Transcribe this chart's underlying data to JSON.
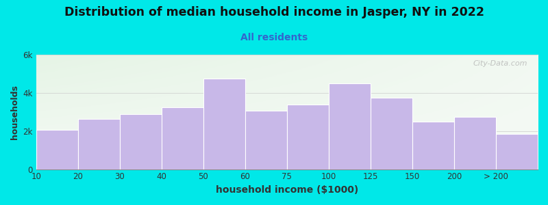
{
  "title": "Distribution of median household income in Jasper, NY in 2022",
  "subtitle": "All residents",
  "xlabel": "household income ($1000)",
  "ylabel": "households",
  "bar_color": "#c8b8e8",
  "outer_bg": "#00e8e8",
  "title_fontsize": 12.5,
  "subtitle_fontsize": 10,
  "subtitle_color": "#3366cc",
  "categories": [
    "10",
    "20",
    "30",
    "40",
    "50",
    "60",
    "75",
    "100",
    "125",
    "150",
    "200",
    "> 200"
  ],
  "values": [
    2050,
    2650,
    2900,
    3250,
    4750,
    3050,
    3400,
    4500,
    3750,
    2500,
    2750,
    1850
  ],
  "bar_edges": [
    0,
    1,
    2,
    3,
    4,
    5,
    6,
    7,
    8,
    9,
    10,
    11,
    12
  ],
  "ylim": [
    0,
    6000
  ],
  "yticks": [
    0,
    2000,
    4000,
    6000
  ],
  "ytick_labels": [
    "0",
    "2k",
    "4k",
    "6k"
  ],
  "watermark": "City-Data.com",
  "bg_color_topleft": "#e8f5e2",
  "bg_color_topright": "#f5f5f5",
  "bg_color_bottomleft": "#f0f0f0",
  "bg_color_bottomright": "#ffffff"
}
